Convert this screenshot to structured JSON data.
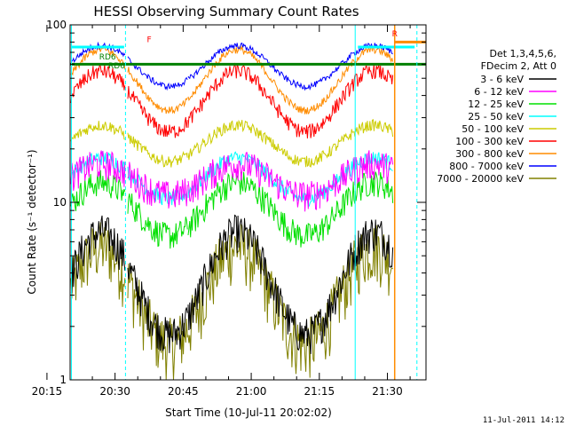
{
  "chart_data": {
    "type": "line",
    "title": "HESSI Observing Summary Count Rates",
    "ylabel": "Count Rate (s⁻¹ detector⁻¹)",
    "xlabel": "Start Time (10-Jul-11 20:02:02)",
    "y_scale": "log",
    "ylim": [
      1,
      100
    ],
    "xlim_minutes": [
      20.1,
      98.5
    ],
    "x_ticks": [
      {
        "minute": 15,
        "label": "20:15"
      },
      {
        "minute": 30,
        "label": "20:30"
      },
      {
        "minute": 45,
        "label": "20:45"
      },
      {
        "minute": 60,
        "label": "21:00"
      },
      {
        "minute": 75,
        "label": "21:15"
      },
      {
        "minute": 90,
        "label": "21:30"
      }
    ],
    "y_ticks": [
      {
        "value": 1,
        "label": "1"
      },
      {
        "value": 10,
        "label": "10"
      },
      {
        "value": 100,
        "label": "100"
      }
    ],
    "legend": {
      "placement": "right",
      "header_line1": "Det 1,3,4,5,6,",
      "header_line2": "FDecim 2, Att 0"
    },
    "series": [
      {
        "name": "3 - 6 keV",
        "color": "#000000"
      },
      {
        "name": "6 - 12 keV",
        "color": "#ff00ff"
      },
      {
        "name": "12 - 25 keV",
        "color": "#00e000"
      },
      {
        "name": "25 - 50 keV",
        "color": "#00ffff"
      },
      {
        "name": "50 - 100 keV",
        "color": "#cccc00"
      },
      {
        "name": "100 - 300 keV",
        "color": "#ff0000"
      },
      {
        "name": "300 - 800 keV",
        "color": "#ff8c00"
      },
      {
        "name": "800 - 7000 keV",
        "color": "#0000ff"
      },
      {
        "name": "7000 - 20000 keV",
        "color": "#808000"
      }
    ],
    "annotations": [
      {
        "text": "RD6",
        "color": "#008000"
      },
      {
        "text": "RD6",
        "color": "#008000"
      },
      {
        "text": "F",
        "color": "#ff0000"
      },
      {
        "text": "R",
        "color": "#ff0000"
      }
    ],
    "timestamp": "11-Jul-2011 14:12"
  }
}
